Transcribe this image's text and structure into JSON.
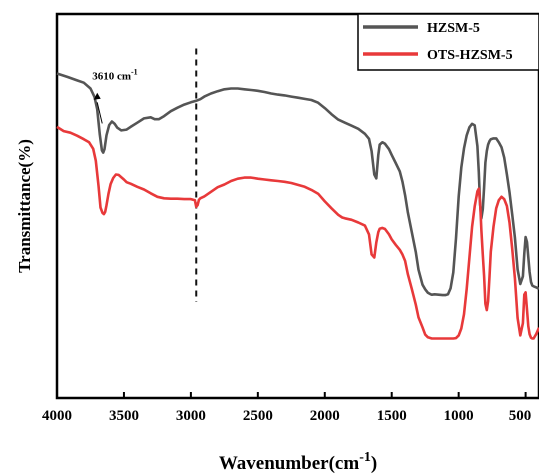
{
  "chart_data": {
    "type": "line",
    "title": "",
    "xlabel": "Wavenumber(cm",
    "xlabel_sup": "-1",
    "xlabel_close": ")",
    "ylabel": "Transmittance(%)",
    "xlim": [
      4000,
      400
    ],
    "x_reversed": true,
    "y_ticks_shown": false,
    "x_ticks": [
      4000,
      3500,
      3000,
      2500,
      2000,
      1500,
      1000,
      500
    ],
    "x_tick_labels": [
      "4000",
      "3500",
      "3000",
      "2500",
      "2000",
      "1500",
      "1000",
      "500"
    ],
    "grid": false,
    "legend_position": "top-right",
    "annotation": {
      "text": "3610 cm",
      "sup": "-1",
      "x": 3610
    },
    "vline_x": 2960,
    "series": [
      {
        "name": "HZSM-5",
        "color": "#555555",
        "x": [
          4000,
          3920,
          3850,
          3800,
          3750,
          3720,
          3700,
          3680,
          3665,
          3655,
          3645,
          3630,
          3610,
          3590,
          3570,
          3550,
          3520,
          3480,
          3450,
          3400,
          3350,
          3300,
          3270,
          3240,
          3200,
          3150,
          3100,
          3050,
          3000,
          2960,
          2930,
          2900,
          2850,
          2800,
          2750,
          2700,
          2650,
          2600,
          2550,
          2500,
          2450,
          2400,
          2350,
          2300,
          2250,
          2200,
          2150,
          2100,
          2050,
          2000,
          1950,
          1900,
          1850,
          1800,
          1750,
          1700,
          1670,
          1650,
          1630,
          1615,
          1600,
          1590,
          1570,
          1550,
          1520,
          1500,
          1470,
          1440,
          1420,
          1400,
          1380,
          1350,
          1320,
          1300,
          1270,
          1250,
          1230,
          1210,
          1200,
          1180,
          1150,
          1120,
          1100,
          1080,
          1060,
          1040,
          1020,
          1000,
          980,
          960,
          940,
          920,
          900,
          880,
          860,
          850,
          840,
          830,
          820,
          810,
          800,
          790,
          780,
          770,
          760,
          740,
          720,
          700,
          680,
          660,
          640,
          620,
          600,
          580,
          560,
          540,
          520,
          510,
          500,
          490,
          480,
          470,
          460,
          450,
          440,
          420,
          400
        ],
        "y": [
          84.5,
          83.6,
          82.7,
          82.1,
          80.6,
          78.4,
          75.2,
          68.6,
          64.5,
          63.9,
          64.8,
          68.4,
          71.1,
          72.0,
          71.4,
          70.4,
          69.7,
          69.9,
          70.6,
          71.7,
          72.8,
          73.1,
          72.6,
          72.6,
          73.4,
          74.7,
          75.6,
          76.4,
          77.0,
          77.4,
          77.8,
          78.5,
          79.3,
          79.9,
          80.4,
          80.6,
          80.6,
          80.4,
          80.2,
          80.0,
          79.7,
          79.3,
          79.0,
          78.8,
          78.5,
          78.2,
          77.9,
          77.6,
          76.9,
          75.5,
          73.9,
          72.5,
          71.7,
          70.9,
          70.1,
          68.8,
          67.5,
          64.3,
          58.2,
          57.2,
          63.3,
          66.0,
          66.6,
          66.2,
          64.8,
          63.3,
          61.2,
          59.0,
          56.4,
          52.8,
          48.4,
          43.2,
          38.0,
          33.4,
          29.5,
          28.3,
          27.4,
          27.0,
          26.9,
          27.0,
          26.9,
          26.8,
          26.8,
          27.0,
          28.6,
          32.7,
          41.6,
          52.5,
          60.0,
          65.0,
          68.4,
          70.5,
          71.4,
          71.0,
          65.6,
          58.8,
          50.3,
          46.8,
          49.2,
          54.8,
          61.3,
          64.3,
          66.0,
          66.9,
          67.4,
          67.6,
          67.6,
          66.6,
          65.3,
          62.6,
          58.2,
          53.6,
          47.8,
          41.8,
          33.5,
          29.7,
          31.7,
          37.6,
          41.9,
          40.6,
          36.7,
          32.8,
          30.2,
          29.3,
          29.1,
          28.8,
          28.4
        ]
      },
      {
        "name": "OTS-HZSM-5",
        "color": "#e8393a",
        "x": [
          4000,
          3950,
          3900,
          3850,
          3800,
          3760,
          3730,
          3710,
          3690,
          3675,
          3660,
          3650,
          3640,
          3630,
          3615,
          3600,
          3580,
          3560,
          3540,
          3520,
          3500,
          3480,
          3450,
          3400,
          3350,
          3300,
          3250,
          3200,
          3150,
          3100,
          3050,
          3000,
          2980,
          2970,
          2960,
          2950,
          2940,
          2930,
          2900,
          2850,
          2800,
          2750,
          2700,
          2650,
          2600,
          2550,
          2500,
          2450,
          2400,
          2350,
          2300,
          2250,
          2200,
          2150,
          2100,
          2050,
          2000,
          1950,
          1900,
          1870,
          1850,
          1800,
          1750,
          1700,
          1670,
          1650,
          1630,
          1615,
          1600,
          1590,
          1570,
          1550,
          1520,
          1500,
          1470,
          1440,
          1420,
          1400,
          1380,
          1350,
          1320,
          1300,
          1270,
          1250,
          1230,
          1210,
          1200,
          1180,
          1150,
          1120,
          1100,
          1080,
          1060,
          1040,
          1020,
          1000,
          980,
          960,
          940,
          920,
          900,
          880,
          860,
          850,
          840,
          830,
          820,
          810,
          800,
          790,
          780,
          770,
          760,
          740,
          720,
          700,
          680,
          660,
          640,
          620,
          600,
          580,
          560,
          540,
          520,
          510,
          500,
          490,
          480,
          470,
          460,
          450,
          440,
          420,
          400
        ],
        "y": [
          70.6,
          69.5,
          69.1,
          68.3,
          67.4,
          66.6,
          64.9,
          61.8,
          55.3,
          49.6,
          48.2,
          47.9,
          48.5,
          50.2,
          53.2,
          55.7,
          57.3,
          58.2,
          58.1,
          57.5,
          56.9,
          56.2,
          55.8,
          55.0,
          54.3,
          53.3,
          52.4,
          52.0,
          51.9,
          51.9,
          51.8,
          51.8,
          51.6,
          51.5,
          49.8,
          50.2,
          51.6,
          52.0,
          52.5,
          53.7,
          54.9,
          55.6,
          56.5,
          57.1,
          57.4,
          57.4,
          57.1,
          56.9,
          56.7,
          56.5,
          56.3,
          56.0,
          55.5,
          55.0,
          54.2,
          53.2,
          51.2,
          49.4,
          47.7,
          47.0,
          46.8,
          46.4,
          45.7,
          44.9,
          42.6,
          37.4,
          36.6,
          40.5,
          43.2,
          44.1,
          44.3,
          44.0,
          42.6,
          41.3,
          39.9,
          38.6,
          37.4,
          35.7,
          32.3,
          28.4,
          24.3,
          21.0,
          18.4,
          16.5,
          15.8,
          15.6,
          15.5,
          15.5,
          15.5,
          15.5,
          15.5,
          15.5,
          15.5,
          15.5,
          15.6,
          16.3,
          18.1,
          21.8,
          28.4,
          36.5,
          44.6,
          49.9,
          53.8,
          54.5,
          51.0,
          43.6,
          37.3,
          31.8,
          24.5,
          22.9,
          25.2,
          31.6,
          38.1,
          44.6,
          49.4,
          51.5,
          52.4,
          51.8,
          50.0,
          45.7,
          38.9,
          31.2,
          20.8,
          16.3,
          19.5,
          26.9,
          27.5,
          23.0,
          18.7,
          16.6,
          15.7,
          15.5,
          15.5,
          16.7,
          18.3
        ]
      }
    ]
  }
}
